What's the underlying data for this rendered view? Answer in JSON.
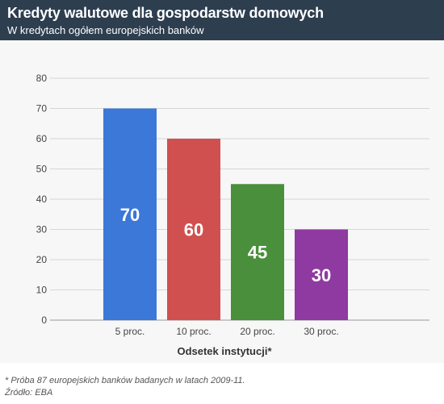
{
  "header": {
    "title": "Kredyty walutowe dla gospodarstw domowych",
    "subtitle": "W kredytach ogółem europejskich banków"
  },
  "chart_data": {
    "type": "bar",
    "title": "Kredyty walutowe dla gospodarstw domowych",
    "subtitle": "W kredytach ogółem europejskich banków",
    "xlabel": "Odsetek instytucji*",
    "ylabel": "",
    "categories": [
      "5 proc.",
      "10 proc.",
      "20 proc.",
      "30 proc."
    ],
    "values": [
      70,
      60,
      45,
      30
    ],
    "colors": [
      "#3b78d8",
      "#d0504f",
      "#4a8f3c",
      "#8e3aa0"
    ],
    "ylim": [
      0,
      80
    ],
    "yticks": [
      0,
      10,
      20,
      30,
      40,
      50,
      60,
      70,
      80
    ],
    "grid": true,
    "data_labels": true
  },
  "footnote": "* Próba 87 europejskich banków badanych w latach 2009-11.",
  "source": "Źródło: EBA"
}
